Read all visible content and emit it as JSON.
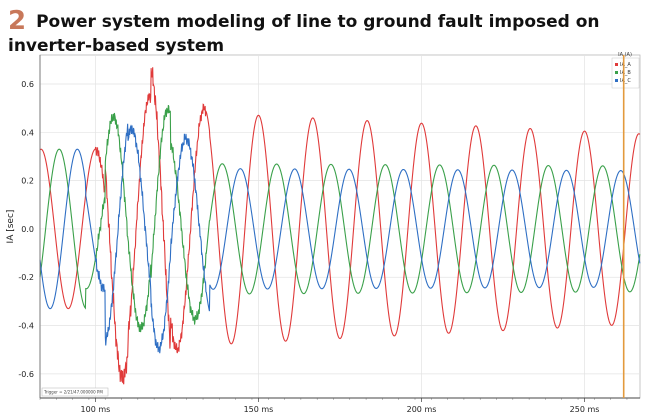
{
  "header": {
    "number": "2",
    "title": "Power system modeling of line to ground fault imposed on inverter-based system"
  },
  "chart_data": {
    "type": "line",
    "ylabel": "IA [sec]",
    "xlabel": "",
    "x_unit": "ms",
    "xlim": [
      83,
      267
    ],
    "ylim": [
      -0.7,
      0.72
    ],
    "x_ticks": [
      100,
      150,
      200,
      250
    ],
    "x_tick_labels": [
      "100 ms",
      "150 ms",
      "200 ms",
      "250 ms"
    ],
    "y_ticks": [
      0.6,
      0.4,
      0.2,
      0.0,
      -0.2,
      -0.4,
      -0.6
    ],
    "y_tick_labels": [
      "0.6",
      "0.4",
      "0.2",
      "0.0",
      "-0.2",
      "-0.4",
      "-0.6"
    ],
    "grid": true,
    "legend": {
      "title": "IA (A)",
      "placement": "top-right"
    },
    "cursor_marker_x": 262,
    "cursor_label": "Trigger = 2/21/47.000000 PM",
    "frequency_hz": 60,
    "segments": [
      {
        "x_start": 83,
        "x_end": 97,
        "amplitude": 0.34
      },
      {
        "x_start": 97,
        "x_end": 103,
        "amplitude": 0.33
      },
      {
        "x_start": 103,
        "x_end": 110,
        "amplitude": 0.62
      },
      {
        "x_start": 110,
        "x_end": 117,
        "amplitude": 0.55
      },
      {
        "x_start": 117,
        "x_end": 123,
        "amplitude": 0.66
      },
      {
        "x_start": 123,
        "x_end": 135,
        "amplitude": 0.5
      },
      {
        "x_start": 135,
        "x_end": 267,
        "amplitude_start": 0.48,
        "amplitude_end": 0.39
      }
    ],
    "series": [
      {
        "name": "IA_A",
        "color": "#e03a3a",
        "phase_deg": 90
      },
      {
        "name": "IA_B",
        "color": "#3aa04a",
        "phase_deg": -30
      },
      {
        "name": "IA_C",
        "color": "#2f6fc4",
        "phase_deg": 210
      }
    ],
    "series_amplitude_after_fault": [
      0.48,
      0.27,
      0.25
    ]
  }
}
